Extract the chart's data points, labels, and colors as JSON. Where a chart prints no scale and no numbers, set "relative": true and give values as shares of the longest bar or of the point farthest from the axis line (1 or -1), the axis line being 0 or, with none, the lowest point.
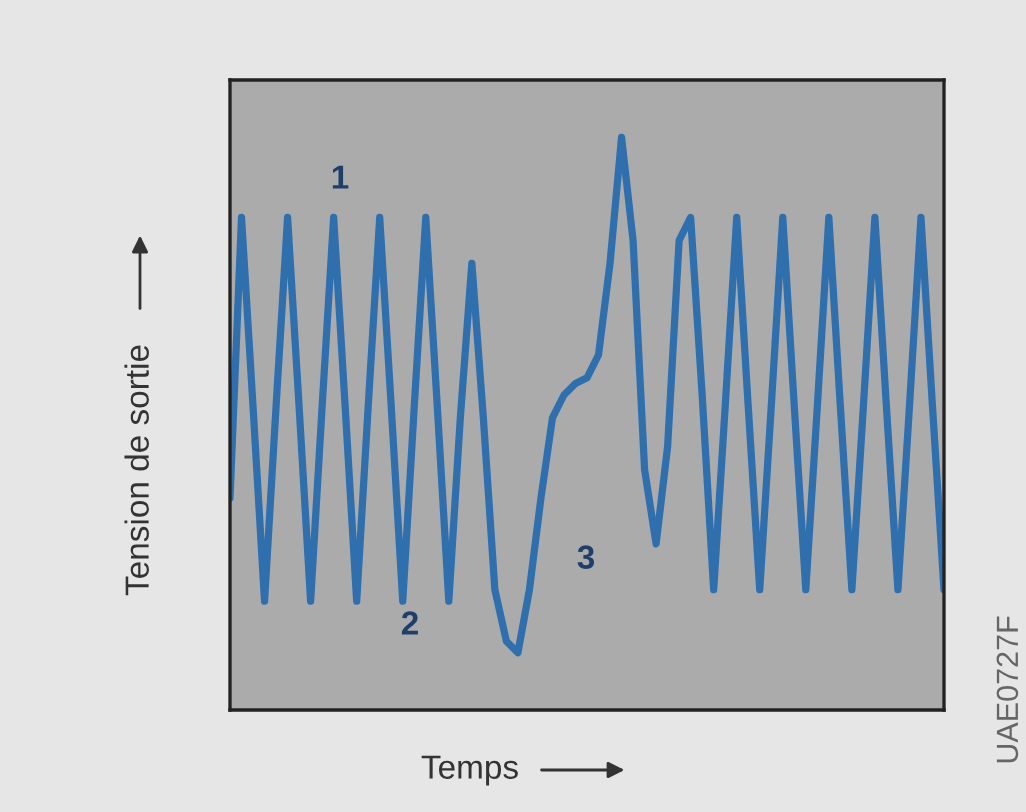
{
  "chart_data": {
    "type": "line",
    "relative": true,
    "xlabel": "Temps",
    "ylabel": "Tension de sortie",
    "categories": [
      null,
      null,
      null,
      null,
      null,
      null,
      null,
      null,
      null,
      null,
      null,
      null,
      null,
      null,
      null,
      null,
      null,
      null,
      null,
      null,
      null,
      null,
      null,
      null,
      null,
      null,
      null,
      null,
      null,
      null,
      null,
      null,
      null,
      null,
      null,
      null,
      null,
      null,
      null,
      null,
      null,
      null,
      null,
      null,
      null,
      null,
      null,
      null,
      null,
      null,
      null,
      null,
      null,
      null,
      null,
      null,
      null,
      null,
      null,
      null,
      null,
      null,
      null
    ],
    "series": [
      {
        "color": "#2f6fae",
        "values": [
          0.37,
          0.86,
          0.53,
          0.19,
          0.53,
          0.86,
          0.53,
          0.19,
          0.53,
          0.86,
          0.53,
          0.19,
          0.53,
          0.86,
          0.53,
          0.19,
          0.53,
          0.86,
          0.53,
          0.19,
          0.51,
          0.78,
          0.51,
          0.21,
          0.12,
          0.1,
          0.21,
          0.37,
          0.51,
          0.55,
          0.57,
          0.58,
          0.62,
          0.78,
          1,
          0.82,
          0.42,
          0.29,
          0.46,
          0.82,
          0.86,
          0.55,
          0.21,
          0.53,
          0.86,
          0.53,
          0.21,
          0.53,
          0.86,
          0.53,
          0.21,
          0.53,
          0.86,
          0.53,
          0.21,
          0.53,
          0.86,
          0.53,
          0.21,
          0.53,
          0.86,
          0.53,
          0.21
        ]
      }
    ],
    "annotations": [
      "1",
      "2",
      "3",
      "UAE0727F"
    ]
  }
}
